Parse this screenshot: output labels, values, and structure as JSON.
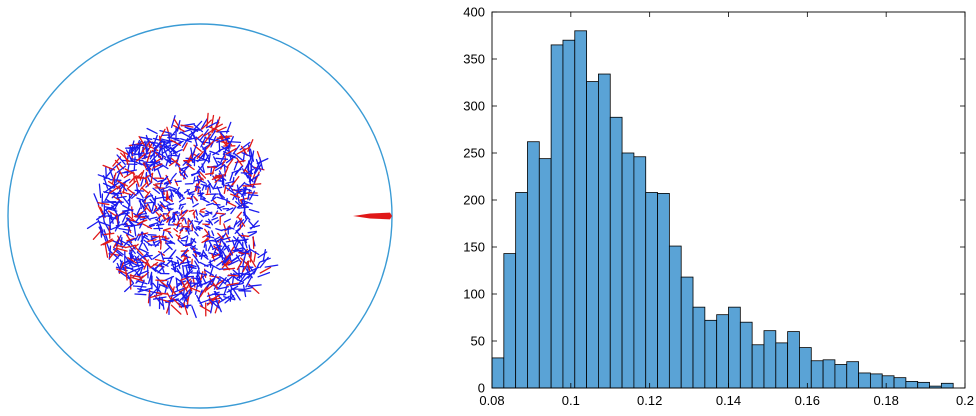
{
  "colors": {
    "circle": "#3a9bd5",
    "arrow_blue": "#1a1aee",
    "arrow_red": "#e01818",
    "probe": "#e01818",
    "bar_fill": "#5aa3d6",
    "bar_stroke": "#000000",
    "axis": "#000000"
  },
  "chart_data": [
    {
      "type": "scatter",
      "title": "",
      "xlabel": "",
      "ylabel": "",
      "axes_visible": false,
      "grid": false,
      "series": [
        {
          "color": "blue",
          "values": []
        },
        {
          "color": "red",
          "values": []
        }
      ]
    },
    {
      "type": "bar",
      "title": "",
      "xlabel": "",
      "ylabel": "",
      "grid": false,
      "xlim": [
        0.08,
        0.2
      ],
      "ylim": [
        0,
        400
      ],
      "xticks": [
        "0.08",
        "0.1",
        "0.12",
        "0.14",
        "0.16",
        "0.18",
        "0.2"
      ],
      "yticks": [
        "0",
        "50",
        "100",
        "150",
        "200",
        "250",
        "300",
        "350",
        "400"
      ],
      "bin_start": 0.08,
      "bin_width": 0.003,
      "values": [
        32,
        143,
        208,
        262,
        244,
        365,
        370,
        380,
        326,
        334,
        288,
        250,
        246,
        208,
        207,
        151,
        118,
        86,
        72,
        78,
        86,
        70,
        46,
        61,
        48,
        60,
        43,
        29,
        30,
        25,
        28,
        16,
        15,
        13,
        11,
        7,
        6,
        2,
        5
      ]
    }
  ]
}
